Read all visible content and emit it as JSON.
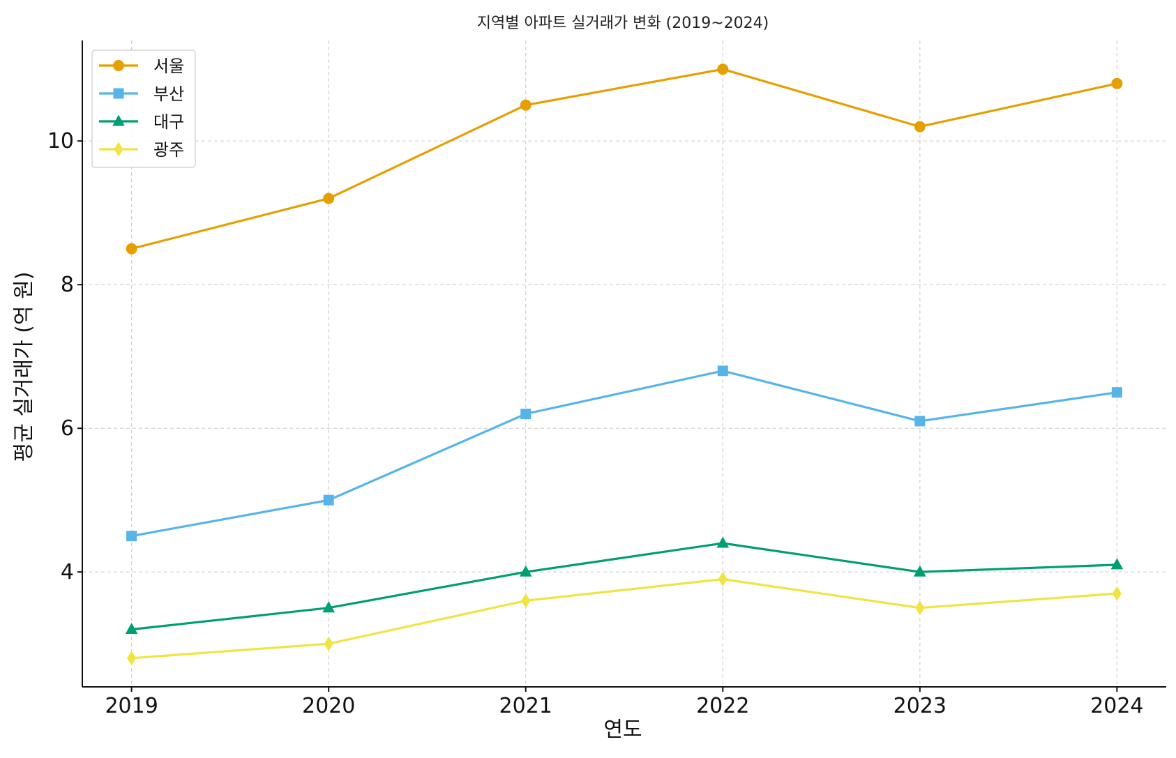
{
  "chart_data": {
    "type": "line",
    "title": "지역별 아파트 실거래가 변화 (2019~2024)",
    "xlabel": "연도",
    "ylabel": "평균 실거래가 (억 원)",
    "x": [
      "2019",
      "2020",
      "2021",
      "2022",
      "2023",
      "2024"
    ],
    "xlim": [
      2018.75,
      2024.25
    ],
    "ylim": [
      2.4,
      11.4
    ],
    "yticks": [
      4,
      6,
      8,
      10
    ],
    "grid": true,
    "legend_position": "top-left",
    "series": [
      {
        "name": "서울",
        "values": [
          8.5,
          9.2,
          10.5,
          11.0,
          10.2,
          10.8
        ],
        "color": "#E69F00",
        "marker": "circle"
      },
      {
        "name": "부산",
        "values": [
          4.5,
          5.0,
          6.2,
          6.8,
          6.1,
          6.5
        ],
        "color": "#56B4E9",
        "marker": "square"
      },
      {
        "name": "대구",
        "values": [
          3.2,
          3.5,
          4.0,
          4.4,
          4.0,
          4.1
        ],
        "color": "#009E73",
        "marker": "triangle"
      },
      {
        "name": "광주",
        "values": [
          2.8,
          3.0,
          3.6,
          3.9,
          3.5,
          3.7
        ],
        "color": "#F0E442",
        "marker": "diamond"
      }
    ]
  }
}
